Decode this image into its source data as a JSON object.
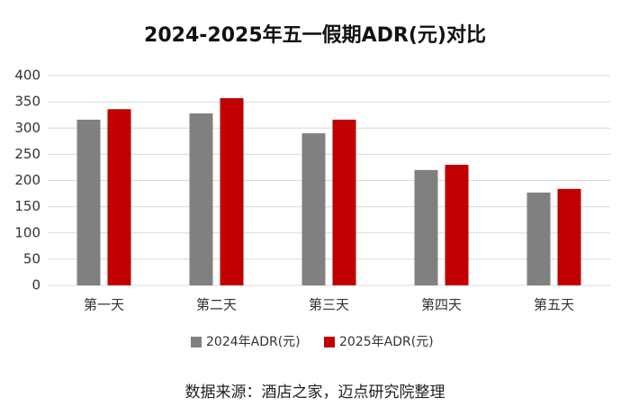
{
  "chart_data": {
    "type": "bar",
    "title": "2024-2025年五一假期ADR(元)对比",
    "categories": [
      "第一天",
      "第二天",
      "第三天",
      "第四天",
      "第五天"
    ],
    "series": [
      {
        "name": "2024年ADR(元)",
        "color": "#808080",
        "values": [
          316,
          328,
          290,
          220,
          177
        ]
      },
      {
        "name": "2025年ADR(元)",
        "color": "#c00000",
        "values": [
          336,
          357,
          316,
          230,
          184
        ]
      }
    ],
    "ylim": [
      0,
      400
    ],
    "yticks": [
      0,
      50,
      100,
      150,
      200,
      250,
      300,
      350,
      400
    ],
    "grid": true,
    "legend": "bottom",
    "source": "数据来源：酒店之家，迈点研究院整理"
  }
}
